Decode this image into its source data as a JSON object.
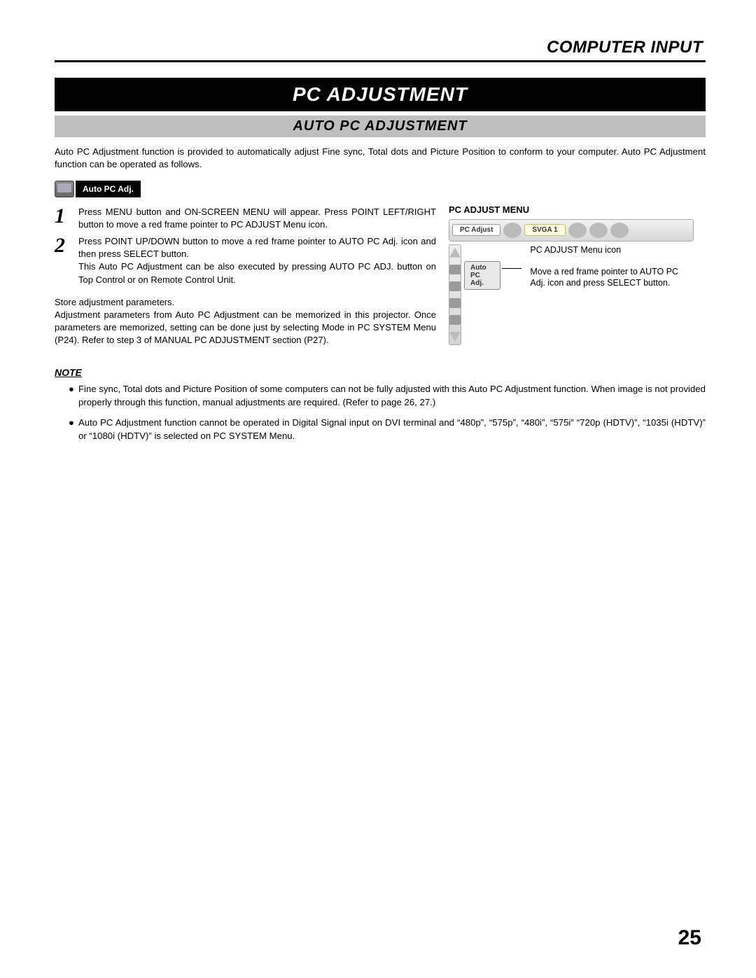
{
  "header": {
    "title": "COMPUTER INPUT"
  },
  "title_bar": "PC ADJUSTMENT",
  "sub_bar": "AUTO PC ADJUSTMENT",
  "intro": "Auto PC Adjustment function is provided to automatically adjust Fine sync, Total dots and Picture Position to conform to your computer.  Auto PC Adjustment function can be operated as follows.",
  "badge_label": "Auto PC Adj.",
  "steps": [
    {
      "num": "1",
      "body": "Press MENU button and ON-SCREEN MENU will appear.  Press POINT LEFT/RIGHT button to move a red frame pointer to PC ADJUST Menu icon."
    },
    {
      "num": "2",
      "body": "Press POINT UP/DOWN button to move a red frame pointer to AUTO PC Adj. icon and then press SELECT button.\nThis Auto PC Adjustment can be also executed by pressing AUTO PC ADJ. button on Top Control or on Remote Control Unit."
    }
  ],
  "store": "Store adjustment parameters.\nAdjustment parameters from Auto PC Adjustment can be memorized in this projector.  Once parameters are memorized, setting can be done just by selecting Mode in PC SYSTEM Menu (P24).  Refer to step 3 of MANUAL PC ADJUSTMENT section (P27).",
  "note_heading": "NOTE",
  "notes": [
    "Fine sync, Total dots and Picture Position of some computers can not be fully adjusted with this Auto PC Adjustment function.  When image is not provided properly through this function, manual adjustments are required.  (Refer to page 26, 27.)",
    "Auto PC Adjustment function cannot be operated in Digital Signal input on DVI terminal and “480p”, “575p”, “480i”, “575i” “720p (HDTV)”, “1035i (HDTV)” or “1080i (HDTV)” is selected on PC SYSTEM Menu."
  ],
  "menu": {
    "heading": "PC ADJUST MENU",
    "top_chip": "PC Adjust",
    "mode_chip": "SVGA 1",
    "auto_chip": "Auto PC Adj.",
    "callout1": "PC ADJUST Menu icon",
    "callout2": "Move a red frame pointer to AUTO PC Adj. icon and press SELECT button."
  },
  "page_number": "25",
  "colors": {
    "black": "#000000",
    "gray_bar": "#bfbfbf",
    "bg": "#ffffff"
  }
}
